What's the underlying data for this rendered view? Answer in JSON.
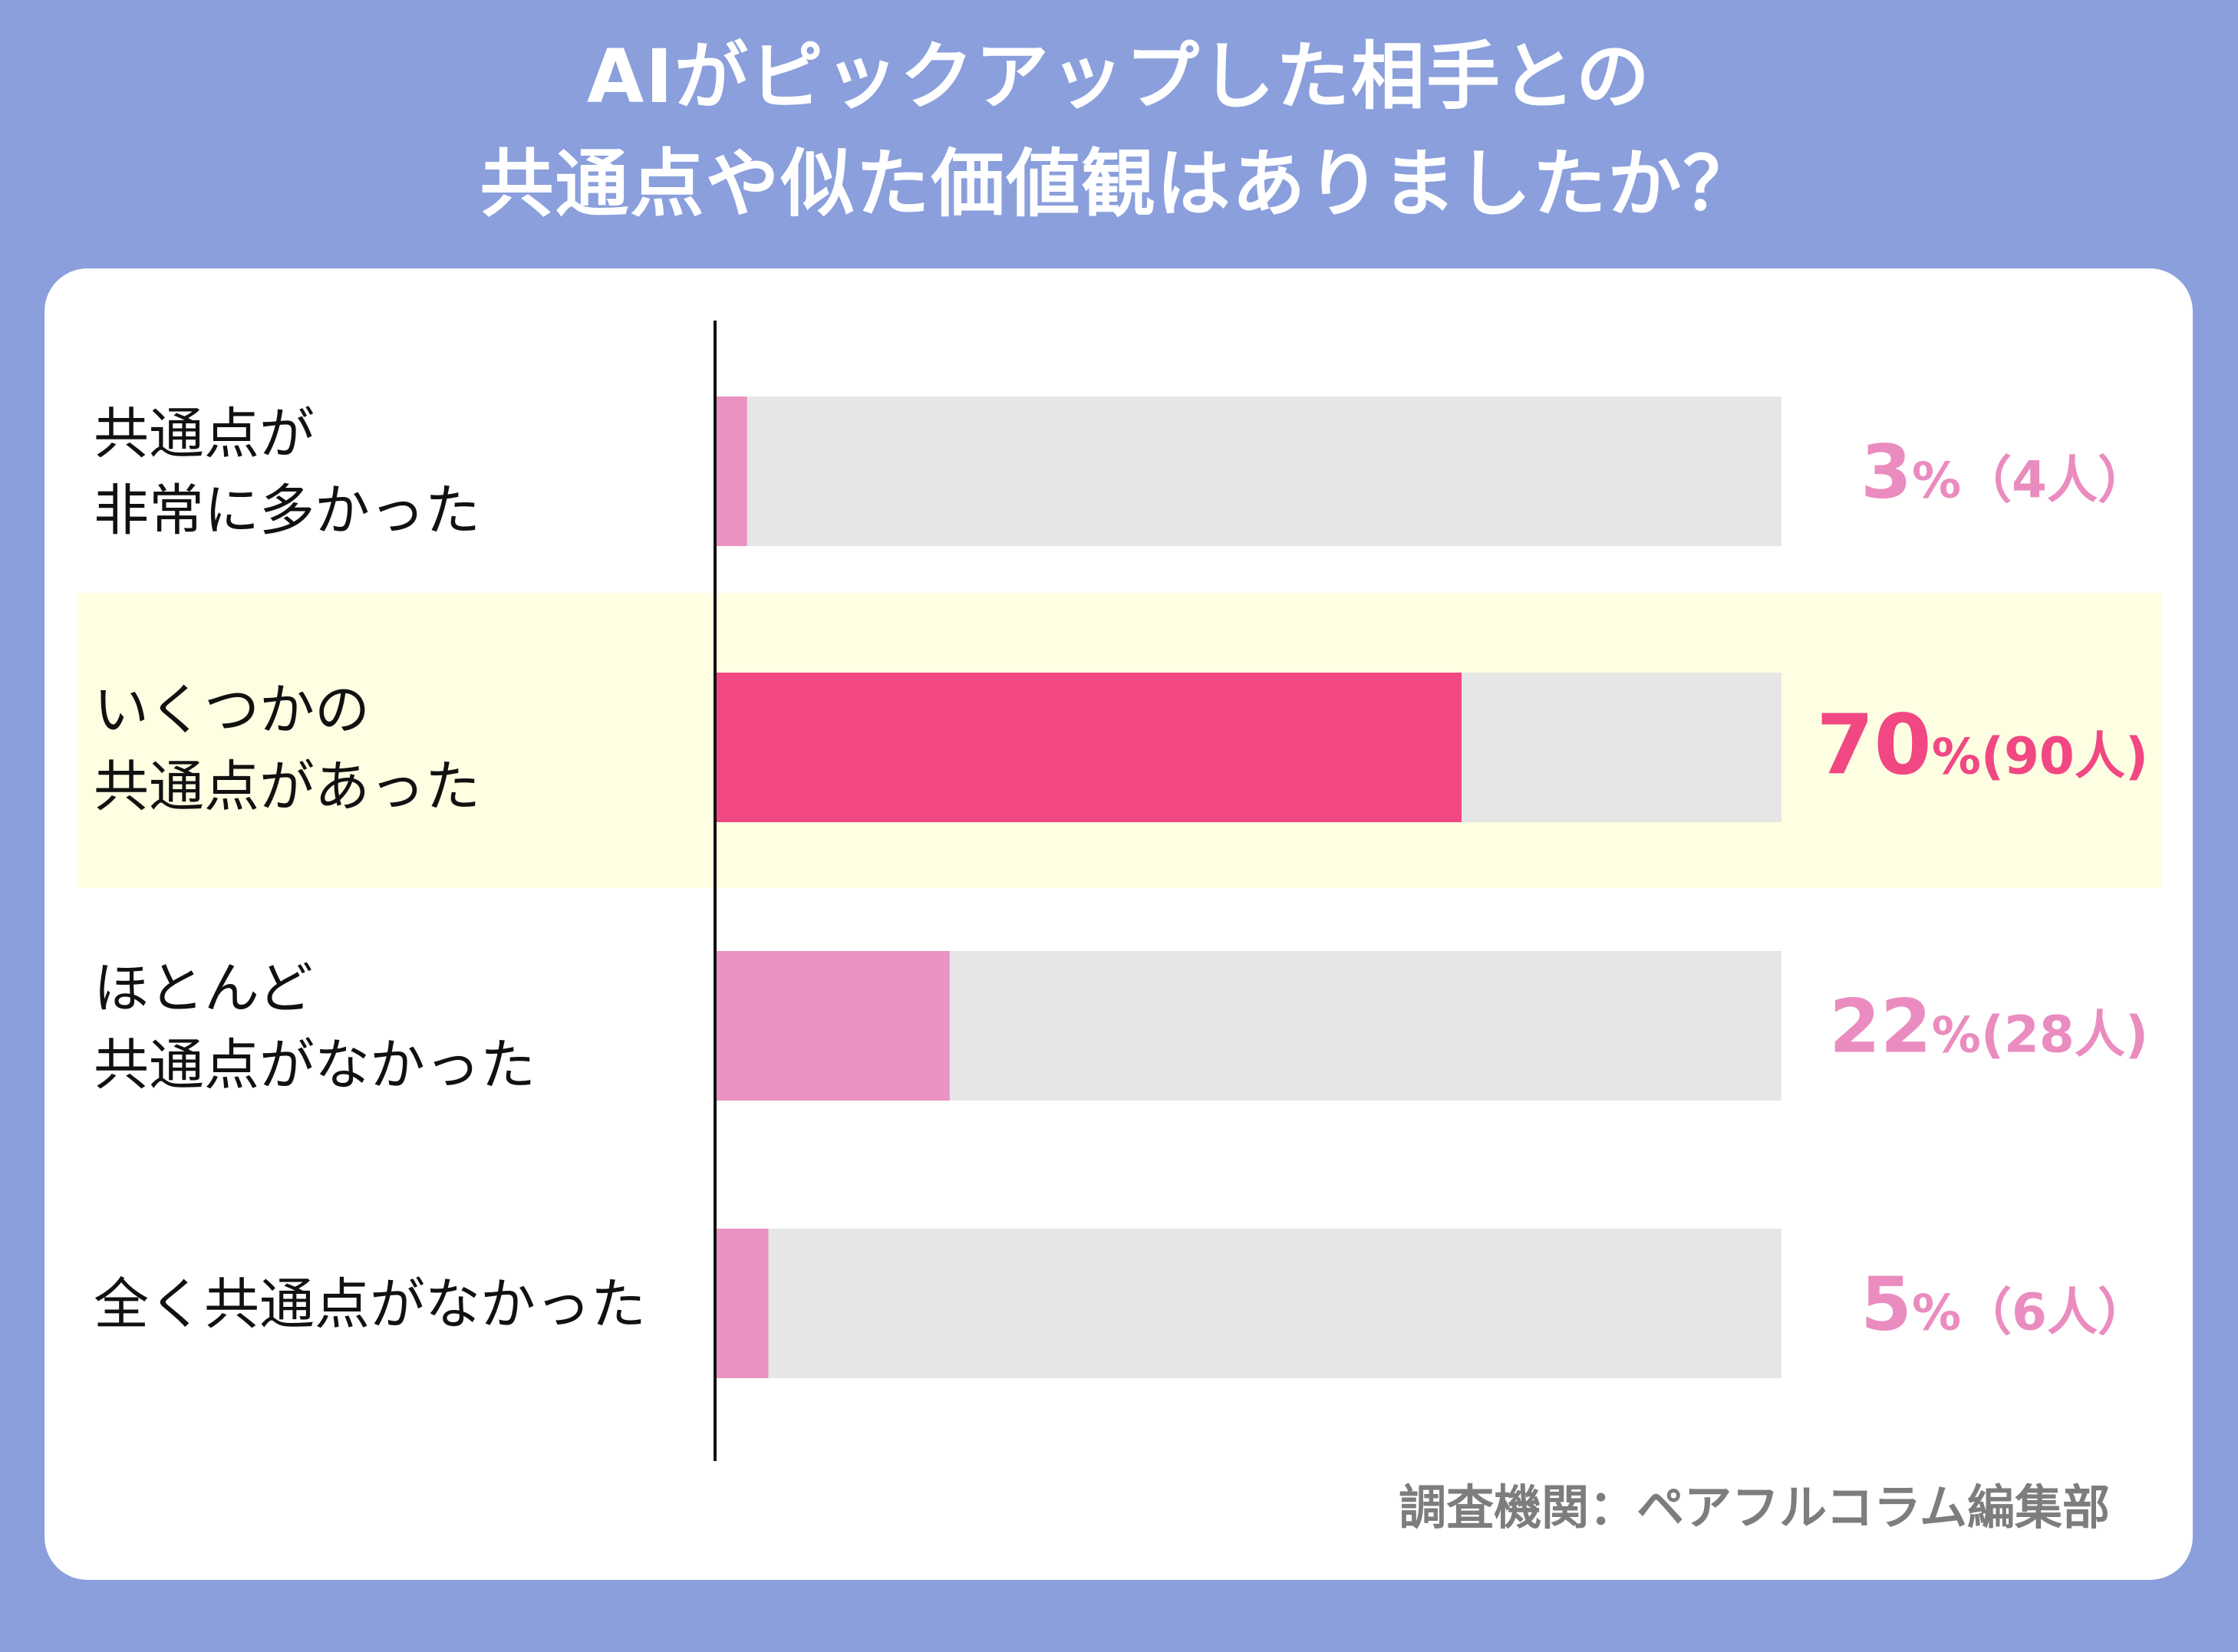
{
  "colors": {
    "background": "#8a9fdc",
    "panel": "#ffffff",
    "track": "#e6e6e6",
    "bar": "#ea93c2",
    "bar_highlight": "#f14783",
    "highlight_band": "#fefee3",
    "value_text": "#ea8cbf",
    "value_text_highlight": "#f14783"
  },
  "chart_data": {
    "type": "bar",
    "orientation": "horizontal",
    "title_lines": [
      "AIがピックアップした相手との",
      "共通点や似た価値観はありましたか？"
    ],
    "categories": [
      [
        "共通点が",
        "非常に多かった"
      ],
      [
        "いくつかの",
        "共通点があった"
      ],
      [
        "ほとんど",
        "共通点がなかった"
      ],
      [
        "全く共通点がなかった"
      ]
    ],
    "values": [
      3,
      70,
      22,
      5
    ],
    "counts": [
      "（4人）",
      "(90人)",
      "(28人)",
      "（6人）"
    ],
    "value_labels": [
      "3",
      "70",
      "22",
      "5"
    ],
    "unit": "%",
    "highlight_index": 1,
    "xlim": [
      0,
      100
    ]
  },
  "source": "調査機関：ペアフルコラム編集部"
}
